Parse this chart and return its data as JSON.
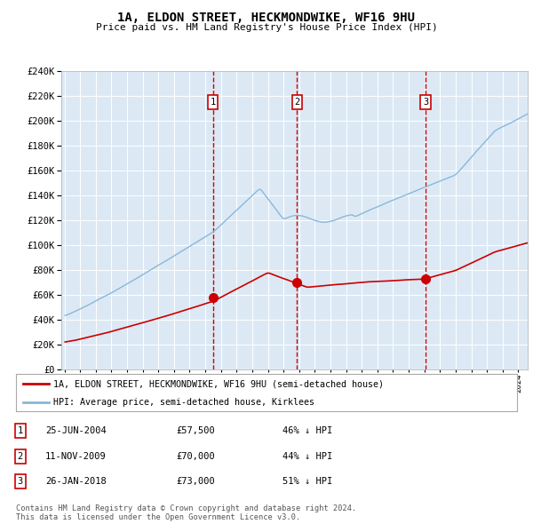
{
  "title": "1A, ELDON STREET, HECKMONDWIKE, WF16 9HU",
  "subtitle": "Price paid vs. HM Land Registry's House Price Index (HPI)",
  "bg_color": "#dce9f5",
  "outer_bg_color": "#ffffff",
  "hpi_color": "#89b8d8",
  "price_color": "#cc0000",
  "vline_color": "#cc0000",
  "ylim": [
    0,
    240000
  ],
  "yticks": [
    0,
    20000,
    40000,
    60000,
    80000,
    100000,
    120000,
    140000,
    160000,
    180000,
    200000,
    220000,
    240000
  ],
  "x_start_year": 1995,
  "x_end_year": 2024,
  "sales": [
    {
      "date": 2004.48,
      "price": 57500,
      "label": "1"
    },
    {
      "date": 2009.86,
      "price": 70000,
      "label": "2"
    },
    {
      "date": 2018.07,
      "price": 73000,
      "label": "3"
    }
  ],
  "legend_price_label": "1A, ELDON STREET, HECKMONDWIKE, WF16 9HU (semi-detached house)",
  "legend_hpi_label": "HPI: Average price, semi-detached house, Kirklees",
  "table_data": [
    {
      "num": "1",
      "date": "25-JUN-2004",
      "price": "£57,500",
      "hpi": "46% ↓ HPI"
    },
    {
      "num": "2",
      "date": "11-NOV-2009",
      "price": "£70,000",
      "hpi": "44% ↓ HPI"
    },
    {
      "num": "3",
      "date": "26-JAN-2018",
      "price": "£73,000",
      "hpi": "51% ↓ HPI"
    }
  ],
  "footnote": "Contains HM Land Registry data © Crown copyright and database right 2024.\nThis data is licensed under the Open Government Licence v3.0."
}
